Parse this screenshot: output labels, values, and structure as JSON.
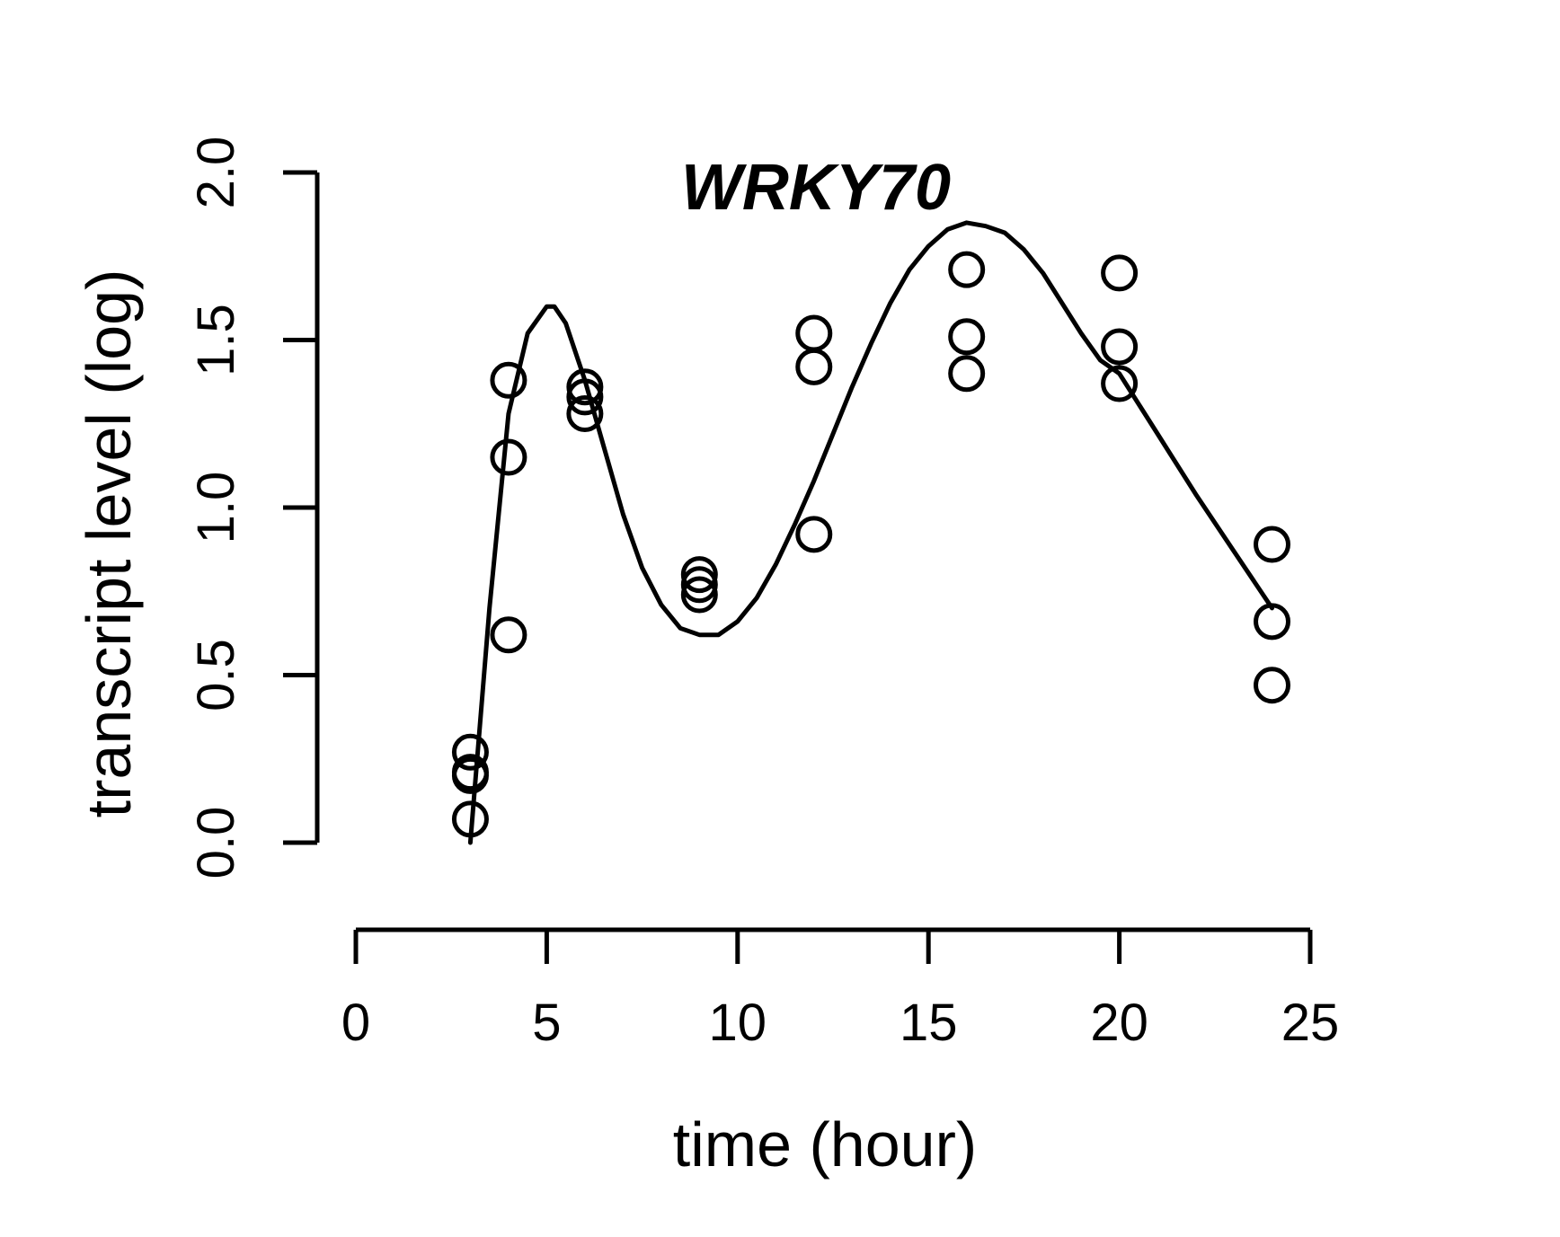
{
  "chart_data": {
    "type": "scatter",
    "title": "WRKY70",
    "xlabel": "time (hour)",
    "ylabel": "transcript level (log)",
    "xlim": [
      0,
      25
    ],
    "ylim": [
      0,
      2
    ],
    "xticks": [
      "0",
      "5",
      "10",
      "15",
      "20",
      "25"
    ],
    "yticks": [
      "0.0",
      "0.5",
      "1.0",
      "1.5",
      "2.0"
    ],
    "grid": false,
    "points": [
      {
        "x": 3,
        "y": 0.27
      },
      {
        "x": 3,
        "y": 0.21
      },
      {
        "x": 3,
        "y": 0.2
      },
      {
        "x": 3,
        "y": 0.07
      },
      {
        "x": 4,
        "y": 1.38
      },
      {
        "x": 4,
        "y": 1.15
      },
      {
        "x": 4,
        "y": 0.62
      },
      {
        "x": 6,
        "y": 1.36
      },
      {
        "x": 6,
        "y": 1.33
      },
      {
        "x": 6,
        "y": 1.28
      },
      {
        "x": 9,
        "y": 0.8
      },
      {
        "x": 9,
        "y": 0.77
      },
      {
        "x": 9,
        "y": 0.74
      },
      {
        "x": 12,
        "y": 1.52
      },
      {
        "x": 12,
        "y": 1.42
      },
      {
        "x": 12,
        "y": 0.92
      },
      {
        "x": 16,
        "y": 1.71
      },
      {
        "x": 16,
        "y": 1.51
      },
      {
        "x": 16,
        "y": 1.4
      },
      {
        "x": 20,
        "y": 1.7
      },
      {
        "x": 20,
        "y": 1.48
      },
      {
        "x": 20,
        "y": 1.37
      },
      {
        "x": 24,
        "y": 0.89
      },
      {
        "x": 24,
        "y": 0.66
      },
      {
        "x": 24,
        "y": 0.47
      }
    ],
    "fit_curve": {
      "x": [
        3.0,
        3.5,
        4.0,
        4.5,
        5.0,
        5.2,
        5.5,
        6.0,
        6.5,
        7.0,
        7.5,
        8.0,
        8.5,
        9.0,
        9.5,
        10.0,
        10.5,
        11.0,
        11.5,
        12.0,
        12.5,
        13.0,
        13.5,
        14.0,
        14.5,
        15.0,
        15.5,
        16.0,
        16.5,
        17.0,
        17.5,
        18.0,
        18.5,
        19.0,
        19.5,
        20.0,
        21.0,
        22.0,
        23.0,
        24.0
      ],
      "y": [
        0.0,
        0.7,
        1.28,
        1.52,
        1.6,
        1.6,
        1.55,
        1.38,
        1.18,
        0.98,
        0.82,
        0.71,
        0.64,
        0.62,
        0.62,
        0.66,
        0.73,
        0.83,
        0.95,
        1.08,
        1.22,
        1.36,
        1.49,
        1.61,
        1.71,
        1.78,
        1.83,
        1.85,
        1.84,
        1.82,
        1.77,
        1.7,
        1.61,
        1.52,
        1.44,
        1.4,
        1.22,
        1.04,
        0.87,
        0.7
      ]
    }
  }
}
